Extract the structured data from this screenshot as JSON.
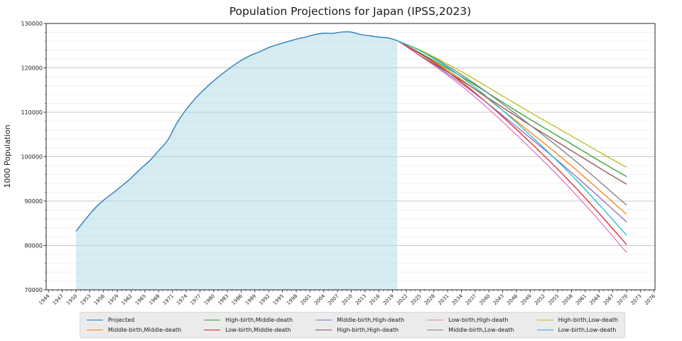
{
  "chart_data": {
    "type": "line",
    "title": "Population Projections for Japan (IPSS,2023)",
    "xlabel": "",
    "ylabel": "1000 Population",
    "xlim": [
      1943.5,
      2076.2
    ],
    "ylim": [
      70000,
      130000
    ],
    "x_ticks": [
      1944,
      1947,
      1950,
      1953,
      1956,
      1959,
      1962,
      1965,
      1968,
      1971,
      1974,
      1977,
      1980,
      1983,
      1986,
      1989,
      1992,
      1995,
      1998,
      2001,
      2004,
      2007,
      2010,
      2013,
      2016,
      2019,
      2022,
      2025,
      2028,
      2031,
      2034,
      2037,
      2040,
      2043,
      2046,
      2049,
      2052,
      2055,
      2058,
      2061,
      2064,
      2067,
      2070,
      2073,
      2076
    ],
    "x_minor_step": 1,
    "y_ticks": [
      70000,
      80000,
      90000,
      100000,
      110000,
      120000,
      130000
    ],
    "y_minor_step": 2000,
    "grid": "horizontal major and minor gridlines, no vertical gridlines",
    "legend_position": "bottom center, 5 columns x 2 rows",
    "shaded_region": {
      "description": "light blue fill under the historical Projected line",
      "from_year": 1950,
      "to_year": 2020,
      "fill_color": "rgba(173,216,230,0.5)"
    },
    "series": [
      {
        "name": "Projected",
        "color": "#1f77b4",
        "fill_under": true,
        "x": [
          1950,
          1952,
          1954,
          1956,
          1958,
          1960,
          1962,
          1964,
          1966,
          1968,
          1970,
          1972,
          1974,
          1976,
          1978,
          1980,
          1982,
          1984,
          1986,
          1988,
          1990,
          1992,
          1994,
          1996,
          1998,
          2000,
          2002,
          2004,
          2006,
          2008,
          2010,
          2012,
          2014,
          2016,
          2018,
          2020
        ],
        "y": [
          83200,
          85808,
          88239,
          90172,
          91767,
          93419,
          95181,
          97182,
          99036,
          101331,
          103720,
          107595,
          110573,
          113094,
          115190,
          117060,
          118728,
          120305,
          121660,
          122783,
          123611,
          124567,
          125265,
          125864,
          126472,
          126926,
          127486,
          127787,
          127770,
          128084,
          128057,
          127515,
          127237,
          126933,
          126749,
          126146
        ]
      },
      {
        "name": "Middle-birth,Middle-death",
        "color": "#ff7f0e",
        "fill_under": false,
        "x": [
          2020,
          2025,
          2030,
          2035,
          2040,
          2045,
          2050,
          2055,
          2060,
          2065,
          2070
        ],
        "y": [
          126146,
          123262,
          120116,
          116639,
          112837,
          108801,
          104686,
          100508,
          96148,
          91597,
          86996
        ]
      },
      {
        "name": "High-birth,Middle-death",
        "color": "#2ca02c",
        "fill_under": false,
        "x": [
          2020,
          2025,
          2030,
          2035,
          2040,
          2045,
          2050,
          2055,
          2060,
          2065,
          2070
        ],
        "y": [
          126146,
          123347,
          120456,
          117404,
          114197,
          110926,
          107746,
          104673,
          101588,
          98482,
          95496
        ]
      },
      {
        "name": "Low-birth,Middle-death",
        "color": "#d62728",
        "fill_under": false,
        "x": [
          2020,
          2025,
          2030,
          2035,
          2040,
          2045,
          2050,
          2055,
          2060,
          2065,
          2070
        ],
        "y": [
          126146,
          123194,
          119844,
          116027,
          111749,
          107101,
          102238,
          97176,
          91796,
          86089,
          80196
        ]
      },
      {
        "name": "Middle-birth,High-death",
        "color": "#9467bd",
        "fill_under": false,
        "x": [
          2020,
          2025,
          2030,
          2035,
          2040,
          2045,
          2050,
          2055,
          2060,
          2065,
          2070
        ],
        "y": [
          126146,
          122725,
          119356,
          115708,
          111763,
          107599,
          103369,
          99085,
          94628,
          89984,
          85296
        ]
      },
      {
        "name": "High-birth,High-death",
        "color": "#8c564b",
        "fill_under": false,
        "x": [
          2020,
          2025,
          2030,
          2035,
          2040,
          2045,
          2050,
          2055,
          2060,
          2065,
          2070
        ],
        "y": [
          126146,
          122810,
          119696,
          116473,
          113123,
          109724,
          106429,
          103250,
          100068,
          96869,
          93796
        ]
      },
      {
        "name": "Low-birth,High-death",
        "color": "#e377c2",
        "fill_under": false,
        "x": [
          2020,
          2025,
          2030,
          2035,
          2040,
          2045,
          2050,
          2055,
          2060,
          2065,
          2070
        ],
        "y": [
          126146,
          122657,
          119084,
          115096,
          110675,
          105899,
          100921,
          95753,
          90276,
          84476,
          78396
        ]
      },
      {
        "name": "Middle-birth,Low-death",
        "color": "#7f7f7f",
        "fill_under": false,
        "x": [
          2020,
          2025,
          2030,
          2035,
          2040,
          2045,
          2050,
          2055,
          2060,
          2065,
          2070
        ],
        "y": [
          126146,
          123926,
          121055,
          117790,
          114164,
          110286,
          106313,
          102265,
          98026,
          93590,
          89096
        ]
      },
      {
        "name": "High-birth,Low-death",
        "color": "#bcbd22",
        "fill_under": false,
        "x": [
          2020,
          2025,
          2030,
          2035,
          2040,
          2045,
          2050,
          2055,
          2060,
          2065,
          2070
        ],
        "y": [
          126146,
          124011,
          121395,
          118555,
          115524,
          112411,
          109373,
          106430,
          103466,
          100475,
          97596
        ]
      },
      {
        "name": "Low-birth,Low-death",
        "color": "#17becf",
        "fill_under": false,
        "x": [
          2020,
          2025,
          2030,
          2035,
          2040,
          2045,
          2050,
          2055,
          2060,
          2065,
          2070
        ],
        "y": [
          126146,
          123858,
          120783,
          117178,
          113076,
          108586,
          103865,
          98933,
          93674,
          88082,
          82296
        ]
      }
    ],
    "style": {
      "spine_color": "#262626",
      "major_grid_color": "#c9c9c9",
      "minor_grid_color": "#ececec",
      "background": "#ffffff",
      "legend_background": "#ebebeb"
    }
  }
}
